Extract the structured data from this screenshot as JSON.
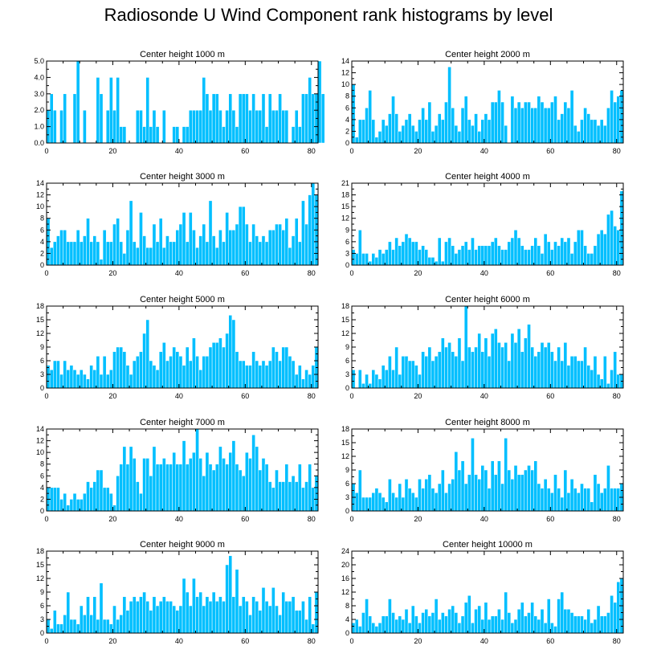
{
  "title": "Radiosonde U Wind Component rank histograms by level",
  "colors": {
    "bar": "#00BFFF",
    "axis": "#000000",
    "background": "#ffffff"
  },
  "chart_data": [
    {
      "type": "bar",
      "title": "Center height 1000 m",
      "xlabel": "",
      "ylabel": "",
      "xlim": [
        0,
        82
      ],
      "ylim": [
        0,
        5
      ],
      "xticks": [
        0,
        20,
        40,
        60,
        80
      ],
      "yticks": [
        0,
        1,
        2,
        3,
        4,
        5
      ],
      "ytick_labels": [
        "0.0",
        "1.0",
        "2.0",
        "3.0",
        "4.0",
        "5.0"
      ],
      "values": [
        2,
        3,
        2,
        0,
        2,
        3,
        0,
        0,
        3,
        5,
        0,
        2,
        0,
        0,
        0,
        4,
        3,
        0,
        2,
        4,
        2,
        4,
        1,
        1,
        0,
        0,
        0,
        2,
        2,
        1,
        4,
        1,
        2,
        1,
        0,
        2,
        0,
        0,
        1,
        1,
        0,
        1,
        1,
        2,
        2,
        2,
        2,
        4,
        3,
        2,
        3,
        3,
        2,
        1,
        2,
        3,
        2,
        1,
        3,
        3,
        3,
        2,
        3,
        2,
        2,
        3,
        1,
        3,
        2,
        2,
        3,
        2,
        2,
        0,
        1,
        2,
        1,
        3,
        3,
        4,
        3,
        3,
        5,
        3
      ]
    },
    {
      "type": "bar",
      "title": "Center height 2000 m",
      "xlabel": "",
      "ylabel": "",
      "xlim": [
        0,
        82
      ],
      "ylim": [
        0,
        14
      ],
      "xticks": [
        0,
        20,
        40,
        60,
        80
      ],
      "yticks": [
        0,
        2,
        4,
        6,
        8,
        10,
        12,
        14
      ],
      "ytick_labels": [
        "0",
        "2",
        "4",
        "6",
        "8",
        "10",
        "12",
        "14"
      ],
      "values": [
        10,
        1,
        4,
        4,
        6,
        9,
        4,
        1,
        2,
        4,
        3,
        5,
        8,
        5,
        2,
        3,
        4,
        5,
        3,
        2,
        4,
        6,
        4,
        7,
        2,
        3,
        5,
        4,
        7,
        13,
        6,
        3,
        2,
        6,
        8,
        4,
        3,
        5,
        2,
        4,
        5,
        4,
        7,
        7,
        9,
        7,
        3,
        0,
        8,
        6,
        7,
        6,
        7,
        7,
        6,
        6,
        8,
        7,
        6,
        6,
        7,
        8,
        4,
        5,
        7,
        6,
        9,
        3,
        2,
        4,
        6,
        5,
        4,
        4,
        3,
        4,
        3,
        6,
        9,
        7,
        8,
        9
      ]
    },
    {
      "type": "bar",
      "title": "Center height 3000 m",
      "xlabel": "",
      "ylabel": "",
      "xlim": [
        0,
        82
      ],
      "ylim": [
        0,
        14
      ],
      "xticks": [
        0,
        20,
        40,
        60,
        80
      ],
      "yticks": [
        0,
        2,
        4,
        6,
        8,
        10,
        12,
        14
      ],
      "ytick_labels": [
        "0",
        "2",
        "4",
        "6",
        "8",
        "10",
        "12",
        "14"
      ],
      "values": [
        8,
        3,
        4,
        5,
        6,
        6,
        4,
        4,
        4,
        6,
        4,
        5,
        8,
        4,
        5,
        4,
        1,
        6,
        4,
        4,
        7,
        8,
        4,
        2,
        6,
        11,
        4,
        3,
        9,
        5,
        3,
        3,
        7,
        4,
        8,
        3,
        5,
        4,
        4,
        6,
        7,
        9,
        4,
        9,
        6,
        3,
        5,
        7,
        4,
        11,
        5,
        3,
        6,
        4,
        9,
        6,
        6,
        7,
        10,
        10,
        7,
        4,
        7,
        5,
        4,
        5,
        4,
        6,
        6,
        7,
        7,
        6,
        8,
        3,
        5,
        8,
        4,
        11,
        7,
        12,
        14,
        12
      ]
    },
    {
      "type": "bar",
      "title": "Center height 4000 m",
      "xlabel": "",
      "ylabel": "",
      "xlim": [
        0,
        82
      ],
      "ylim": [
        0,
        21
      ],
      "xticks": [
        0,
        20,
        40,
        60,
        80
      ],
      "yticks": [
        0,
        3,
        6,
        9,
        12,
        15,
        18,
        21
      ],
      "ytick_labels": [
        "0",
        "3",
        "6",
        "9",
        "12",
        "15",
        "18",
        "21"
      ],
      "values": [
        4,
        3,
        9,
        3,
        3,
        1,
        3,
        2,
        4,
        3,
        4,
        6,
        4,
        7,
        5,
        6,
        8,
        7,
        6,
        6,
        4,
        5,
        4,
        2,
        2,
        1,
        7,
        1,
        6,
        7,
        5,
        3,
        4,
        5,
        6,
        4,
        7,
        4,
        5,
        5,
        5,
        5,
        6,
        7,
        5,
        4,
        4,
        6,
        7,
        9,
        7,
        5,
        4,
        4,
        5,
        7,
        5,
        3,
        8,
        6,
        4,
        6,
        5,
        7,
        6,
        7,
        3,
        6,
        9,
        9,
        5,
        3,
        3,
        5,
        8,
        9,
        8,
        13,
        14,
        10,
        9,
        19
      ]
    },
    {
      "type": "bar",
      "title": "Center height 5000 m",
      "xlabel": "",
      "ylabel": "",
      "xlim": [
        0,
        82
      ],
      "ylim": [
        0,
        18
      ],
      "xticks": [
        0,
        20,
        40,
        60,
        80
      ],
      "yticks": [
        0,
        3,
        6,
        9,
        12,
        15,
        18
      ],
      "ytick_labels": [
        "0",
        "3",
        "6",
        "9",
        "12",
        "15",
        "18"
      ],
      "values": [
        5,
        4,
        6,
        6,
        3,
        6,
        4,
        5,
        4,
        3,
        4,
        3,
        2,
        5,
        4,
        7,
        3,
        7,
        3,
        4,
        8,
        9,
        9,
        8,
        5,
        3,
        6,
        7,
        8,
        12,
        15,
        6,
        5,
        4,
        8,
        10,
        6,
        7,
        9,
        8,
        7,
        5,
        9,
        6,
        11,
        7,
        4,
        7,
        7,
        9,
        10,
        10,
        11,
        9,
        12,
        16,
        15,
        8,
        6,
        6,
        5,
        5,
        8,
        6,
        5,
        6,
        5,
        6,
        9,
        8,
        6,
        9,
        9,
        7,
        6,
        3,
        5,
        2,
        4,
        3,
        5,
        9
      ]
    },
    {
      "type": "bar",
      "title": "Center height 6000 m",
      "xlabel": "",
      "ylabel": "",
      "xlim": [
        0,
        82
      ],
      "ylim": [
        0,
        18
      ],
      "xticks": [
        0,
        20,
        40,
        60,
        80
      ],
      "yticks": [
        0,
        3,
        6,
        9,
        12,
        15,
        18
      ],
      "ytick_labels": [
        "0",
        "3",
        "6",
        "9",
        "12",
        "15",
        "18"
      ],
      "values": [
        4,
        0,
        4,
        1,
        3,
        1,
        4,
        3,
        2,
        5,
        4,
        7,
        4,
        9,
        3,
        7,
        7,
        6,
        6,
        5,
        3,
        8,
        7,
        9,
        6,
        7,
        8,
        11,
        9,
        10,
        8,
        7,
        11,
        6,
        18,
        9,
        8,
        9,
        12,
        8,
        11,
        7,
        12,
        13,
        10,
        9,
        10,
        6,
        12,
        10,
        13,
        8,
        11,
        14,
        9,
        7,
        8,
        10,
        9,
        10,
        8,
        6,
        9,
        6,
        10,
        5,
        7,
        7,
        6,
        6,
        9,
        5,
        4,
        7,
        3,
        2,
        7,
        1,
        4,
        8,
        3,
        3
      ]
    },
    {
      "type": "bar",
      "title": "Center height 7000 m",
      "xlabel": "",
      "ylabel": "",
      "xlim": [
        0,
        82
      ],
      "ylim": [
        0,
        14
      ],
      "xticks": [
        0,
        20,
        40,
        60,
        80
      ],
      "yticks": [
        0,
        2,
        4,
        6,
        8,
        10,
        12,
        14
      ],
      "ytick_labels": [
        "0",
        "2",
        "4",
        "6",
        "8",
        "10",
        "12",
        "14"
      ],
      "values": [
        4,
        4,
        4,
        4,
        2,
        3,
        1,
        2,
        3,
        2,
        2,
        3,
        5,
        4,
        5,
        7,
        7,
        4,
        4,
        3,
        1,
        6,
        8,
        11,
        8,
        11,
        9,
        5,
        3,
        9,
        9,
        6,
        11,
        8,
        8,
        9,
        8,
        8,
        10,
        8,
        8,
        12,
        8,
        9,
        10,
        14,
        9,
        6,
        10,
        8,
        7,
        8,
        11,
        9,
        8,
        10,
        12,
        8,
        7,
        6,
        10,
        9,
        13,
        11,
        7,
        9,
        8,
        5,
        4,
        7,
        5,
        5,
        8,
        5,
        6,
        5,
        8,
        4,
        5,
        8,
        4,
        6
      ]
    },
    {
      "type": "bar",
      "title": "Center height 8000 m",
      "xlabel": "",
      "ylabel": "",
      "xlim": [
        0,
        82
      ],
      "ylim": [
        0,
        18
      ],
      "xticks": [
        0,
        20,
        40,
        60,
        80
      ],
      "yticks": [
        0,
        3,
        6,
        9,
        12,
        15,
        18
      ],
      "ytick_labels": [
        "0",
        "3",
        "6",
        "9",
        "12",
        "15",
        "18"
      ],
      "values": [
        6,
        4,
        9,
        3,
        3,
        3,
        4,
        5,
        4,
        3,
        2,
        7,
        4,
        3,
        6,
        3,
        7,
        5,
        4,
        3,
        7,
        5,
        7,
        8,
        5,
        4,
        6,
        9,
        4,
        6,
        7,
        13,
        9,
        11,
        6,
        8,
        16,
        8,
        7,
        10,
        9,
        5,
        11,
        8,
        11,
        6,
        16,
        9,
        7,
        10,
        8,
        8,
        9,
        10,
        9,
        11,
        6,
        5,
        7,
        5,
        4,
        8,
        5,
        3,
        9,
        4,
        7,
        5,
        4,
        6,
        5,
        5,
        2,
        8,
        6,
        4,
        5,
        10,
        5,
        5,
        5,
        6
      ]
    },
    {
      "type": "bar",
      "title": "Center height 9000 m",
      "xlabel": "",
      "ylabel": "",
      "xlim": [
        0,
        82
      ],
      "ylim": [
        0,
        18
      ],
      "xticks": [
        0,
        20,
        40,
        60,
        80
      ],
      "yticks": [
        0,
        3,
        6,
        9,
        12,
        15,
        18
      ],
      "ytick_labels": [
        "0",
        "3",
        "6",
        "9",
        "12",
        "15",
        "18"
      ],
      "values": [
        3,
        1,
        5,
        2,
        2,
        4,
        9,
        3,
        3,
        2,
        6,
        4,
        8,
        4,
        8,
        3,
        11,
        3,
        3,
        2,
        6,
        3,
        4,
        8,
        5,
        7,
        8,
        7,
        8,
        9,
        7,
        5,
        8,
        6,
        7,
        8,
        7,
        7,
        6,
        5,
        6,
        12,
        9,
        6,
        12,
        8,
        9,
        6,
        8,
        7,
        9,
        7,
        8,
        7,
        15,
        17,
        8,
        14,
        6,
        8,
        7,
        4,
        8,
        7,
        5,
        10,
        7,
        6,
        10,
        6,
        4,
        9,
        7,
        7,
        8,
        5,
        5,
        7,
        3,
        8,
        2,
        9
      ]
    },
    {
      "type": "bar",
      "title": "Center height 10000 m",
      "xlabel": "",
      "ylabel": "",
      "xlim": [
        0,
        82
      ],
      "ylim": [
        0,
        24
      ],
      "xticks": [
        0,
        20,
        40,
        60,
        80
      ],
      "yticks": [
        0,
        4,
        8,
        12,
        16,
        20,
        24
      ],
      "ytick_labels": [
        "0",
        "4",
        "8",
        "12",
        "16",
        "20",
        "24"
      ],
      "values": [
        3,
        4,
        2,
        6,
        10,
        5,
        3,
        2,
        3,
        5,
        5,
        10,
        6,
        4,
        5,
        4,
        7,
        3,
        8,
        5,
        3,
        6,
        7,
        5,
        6,
        10,
        4,
        6,
        5,
        7,
        8,
        6,
        3,
        5,
        9,
        11,
        3,
        7,
        8,
        4,
        9,
        4,
        5,
        5,
        7,
        4,
        12,
        6,
        3,
        4,
        7,
        9,
        5,
        6,
        9,
        5,
        4,
        7,
        3,
        10,
        3,
        2,
        10,
        12,
        7,
        7,
        6,
        5,
        5,
        5,
        4,
        7,
        3,
        4,
        8,
        5,
        5,
        6,
        11,
        9,
        15,
        16
      ]
    }
  ]
}
